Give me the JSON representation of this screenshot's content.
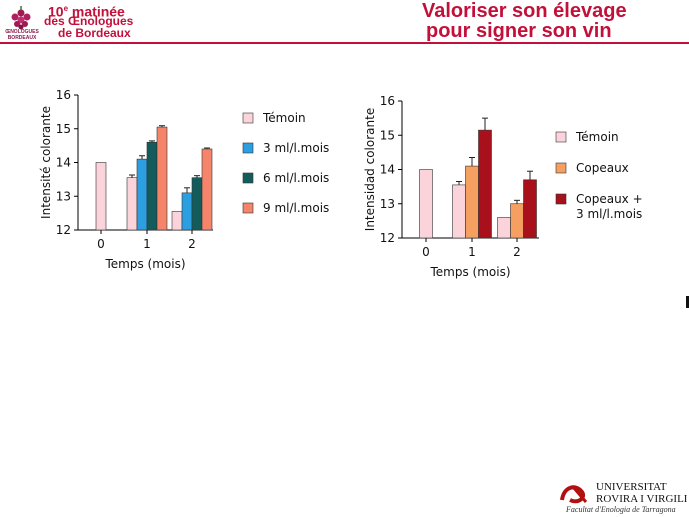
{
  "header": {
    "logo_caption": "ŒNOLOGUES BORDEAUX",
    "event_line1_num": "10",
    "event_line1_sup": "e",
    "event_line1_text": " matinée",
    "event_line2": "des Œnologues",
    "event_line3": "de Bordeaux",
    "title_line1": "Valoriser son élevage",
    "title_line2": "pour signer son vin",
    "accent_color": "#c2103a"
  },
  "footer": {
    "university_line1": "Universitat",
    "university_line2": "Rovira i Virgili",
    "faculty": "Facultat d'Enologia de Tarragona"
  },
  "chart_data": [
    {
      "type": "bar",
      "ylabel": "Intensité colorante",
      "xlabel": "Temps (mois)",
      "categories": [
        "0",
        "1",
        "2"
      ],
      "ylim": [
        12,
        16
      ],
      "yticks": [
        "12",
        "13",
        "14",
        "15",
        "16"
      ],
      "legend_position": "right",
      "series": [
        {
          "name": "Témoin",
          "color": "#fbd3da",
          "values": [
            14.0,
            13.55,
            12.55
          ],
          "errors": [
            0,
            0.08,
            0
          ]
        },
        {
          "name": "3 ml/l.mois",
          "color": "#2b9fe0",
          "values": [
            null,
            14.1,
            13.1
          ],
          "errors": [
            0,
            0.1,
            0.15
          ]
        },
        {
          "name": "6 ml/l.mois",
          "color": "#145c5c",
          "values": [
            null,
            14.6,
            13.55
          ],
          "errors": [
            0,
            0.04,
            0.06
          ]
        },
        {
          "name": "9 ml/l.mois",
          "color": "#f5856a",
          "values": [
            null,
            15.05,
            14.4
          ],
          "errors": [
            0,
            0.04,
            0.03
          ]
        }
      ]
    },
    {
      "type": "bar",
      "ylabel": "Intensidad colorante",
      "xlabel": "Temps (mois)",
      "categories": [
        "0",
        "1",
        "2"
      ],
      "ylim": [
        12,
        16
      ],
      "yticks": [
        "12",
        "13",
        "14",
        "15",
        "16"
      ],
      "legend_position": "right",
      "series": [
        {
          "name": "Témoin",
          "color": "#fbd3da",
          "values": [
            14.0,
            13.55,
            12.6
          ],
          "errors": [
            0,
            0.1,
            0
          ]
        },
        {
          "name": "Copeaux",
          "color": "#f5a060",
          "values": [
            null,
            14.1,
            13.0
          ],
          "errors": [
            0,
            0.25,
            0.1
          ]
        },
        {
          "name": "Copeaux + 3 ml/l.mois",
          "color": "#a8101c",
          "values": [
            null,
            15.15,
            13.7
          ],
          "errors": [
            0,
            0.35,
            0.25
          ]
        }
      ]
    }
  ]
}
